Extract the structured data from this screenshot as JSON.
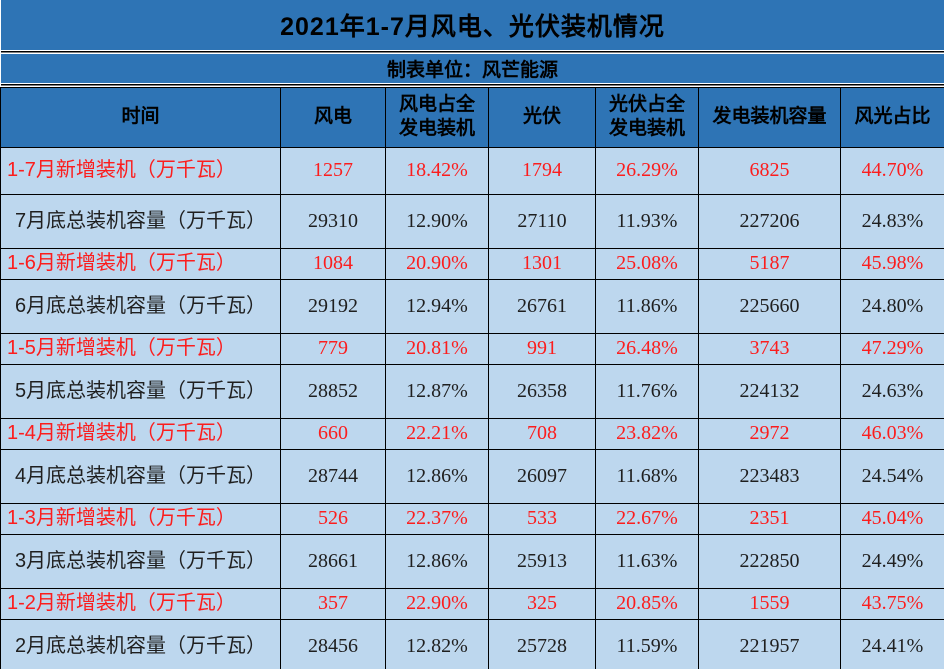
{
  "colors": {
    "banner_bg": "#2E74B5",
    "cell_bg": "#BDD7EE",
    "added_row_text": "#FC1D1D",
    "total_row_text": "#1F1F1F",
    "border": "#000000"
  },
  "chart_data": {
    "type": "table",
    "title": "2021年1-7月风电、光伏装机情况",
    "subtitle": "制表单位：风芒能源",
    "columns": [
      "时间",
      "风电",
      "风电占全\n发电装机",
      "光伏",
      "光伏占全\n发电装机",
      "发电装机容量",
      "风光占比"
    ],
    "rows": [
      {
        "type": "add",
        "label": "1-7月新增装机（万千瓦）",
        "values": [
          "1257",
          "18.42%",
          "1794",
          "26.29%",
          "6825",
          "44.70%"
        ]
      },
      {
        "type": "total",
        "label": "7月底总装机容量（万千瓦）",
        "values": [
          "29310",
          "12.90%",
          "27110",
          "11.93%",
          "227206",
          "24.83%"
        ]
      },
      {
        "type": "add",
        "label": "1-6月新增装机（万千瓦）",
        "values": [
          "1084",
          "20.90%",
          "1301",
          "25.08%",
          "5187",
          "45.98%"
        ]
      },
      {
        "type": "total",
        "label": "6月底总装机容量（万千瓦）",
        "values": [
          "29192",
          "12.94%",
          "26761",
          "11.86%",
          "225660",
          "24.80%"
        ]
      },
      {
        "type": "add",
        "label": "1-5月新增装机（万千瓦）",
        "values": [
          "779",
          "20.81%",
          "991",
          "26.48%",
          "3743",
          "47.29%"
        ]
      },
      {
        "type": "total",
        "label": "5月底总装机容量（万千瓦）",
        "values": [
          "28852",
          "12.87%",
          "26358",
          "11.76%",
          "224132",
          "24.63%"
        ]
      },
      {
        "type": "add",
        "label": "1-4月新增装机（万千瓦）",
        "values": [
          "660",
          "22.21%",
          "708",
          "23.82%",
          "2972",
          "46.03%"
        ]
      },
      {
        "type": "total",
        "label": "4月底总装机容量（万千瓦）",
        "values": [
          "28744",
          "12.86%",
          "26097",
          "11.68%",
          "223483",
          "24.54%"
        ]
      },
      {
        "type": "add",
        "label": "1-3月新增装机（万千瓦）",
        "values": [
          "526",
          "22.37%",
          "533",
          "22.67%",
          "2351",
          "45.04%"
        ]
      },
      {
        "type": "total",
        "label": "3月底总装机容量（万千瓦）",
        "values": [
          "28661",
          "12.86%",
          "25913",
          "11.63%",
          "222850",
          "24.49%"
        ]
      },
      {
        "type": "add",
        "label": "1-2月新增装机（万千瓦）",
        "values": [
          "357",
          "22.90%",
          "325",
          "20.85%",
          "1559",
          "43.75%"
        ]
      },
      {
        "type": "total",
        "label": "2月底总装机容量（万千瓦）",
        "values": [
          "28456",
          "12.82%",
          "25728",
          "11.59%",
          "221957",
          "24.41%"
        ]
      }
    ]
  }
}
